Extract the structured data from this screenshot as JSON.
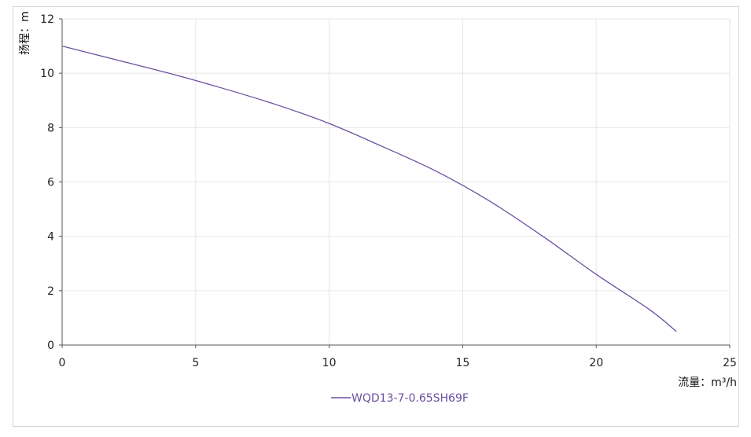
{
  "chart_data": {
    "type": "line",
    "title": "",
    "xlabel": "流量：m³/h",
    "ylabel": "扬程：m",
    "xlim": [
      0,
      25
    ],
    "ylim": [
      0,
      12
    ],
    "x_ticks": [
      0,
      5,
      10,
      15,
      20,
      25
    ],
    "y_ticks": [
      0,
      2,
      4,
      6,
      8,
      10,
      12
    ],
    "grid": true,
    "legend_position": "bottom-center",
    "series": [
      {
        "name": "WQD13-7-0.65SH69F",
        "color": "#6b4fa0",
        "x": [
          0,
          2,
          4,
          6,
          8,
          10,
          12,
          14,
          16,
          18,
          20,
          22,
          23
        ],
        "y": [
          11.0,
          10.5,
          10.0,
          9.45,
          8.85,
          8.15,
          7.3,
          6.4,
          5.3,
          4.0,
          2.6,
          1.3,
          0.5
        ]
      }
    ]
  }
}
